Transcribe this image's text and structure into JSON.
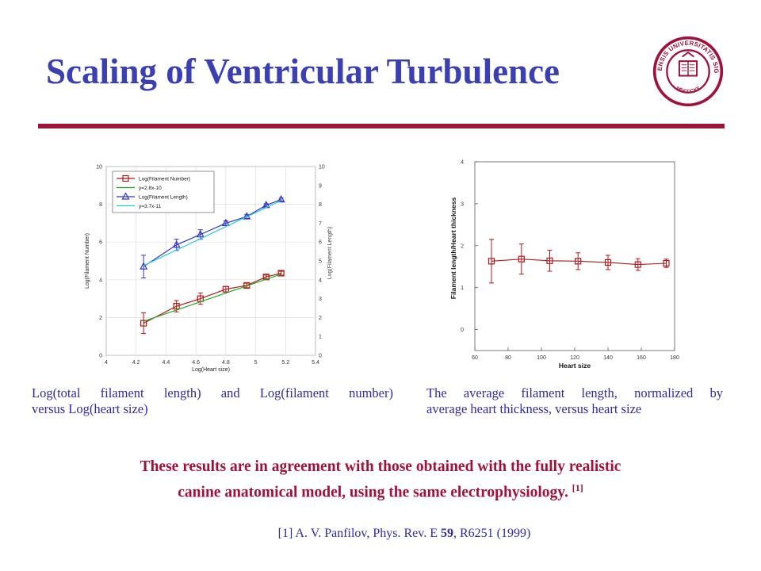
{
  "slide": {
    "title": "Scaling of Ventricular Turbulence",
    "caption_left_line1": "Log(total filament length) and Log(filament number)",
    "caption_left_line2": "versus Log(heart size)",
    "caption_right_line1": "The average filament length, normalized by",
    "caption_right_line2": "average heart thickness, versus heart size",
    "main_line1": "These results are in agreement with those obtained with the fully realistic",
    "main_line2": "canine anatomical model, using the same electrophysiology.",
    "main_ref_marker": "[1]",
    "reference_prefix": "[1] A. V. Panfilov, Phys. Rev. E ",
    "reference_volume": "59",
    "reference_suffix": ", R6251 (1999)",
    "seal_text_top": "INDIANENSIS UNIVERSITATIS SIGILLUM",
    "seal_text_bottom": "MDCCCXX",
    "colors": {
      "title": "#3a3fb4",
      "accent": "#a0123a",
      "caption": "#2e2aa5"
    }
  },
  "chart_data": [
    {
      "type": "line",
      "title": "",
      "xlabel": "Log(Heart size)",
      "ylabel": "Log(Filament Number)",
      "y2label": "Log(Filament Length)",
      "xlim": [
        4,
        5.4
      ],
      "ylim": [
        0,
        10
      ],
      "y2lim": [
        0,
        10
      ],
      "x_ticks": [
        "4",
        "4.2",
        "4.4",
        "4.6",
        "4.8",
        "5",
        "5.2",
        "5.4"
      ],
      "y_ticks": [
        "0",
        "2",
        "4",
        "6",
        "8",
        "10"
      ],
      "y2_ticks": [
        "0",
        "1",
        "2",
        "3",
        "4",
        "5",
        "6",
        "7",
        "8",
        "9",
        "10"
      ],
      "grid": true,
      "legend": "top-left",
      "legend_entries": [
        "Log(Filament Number)",
        "y=2.8x-10",
        "Log(Filament Length)",
        "y=3.7x-11"
      ],
      "series": [
        {
          "name": "Log(Filament Number)",
          "axis": "left",
          "color": "#b01818",
          "marker": "square",
          "x": [
            4.25,
            4.47,
            4.63,
            4.8,
            4.94,
            5.07,
            5.17
          ],
          "y": [
            1.7,
            2.6,
            3.0,
            3.5,
            3.7,
            4.15,
            4.35
          ],
          "err": [
            0.55,
            0.3,
            0.3,
            0.15,
            0.12,
            0.1,
            0.1
          ]
        },
        {
          "name": "y=2.8x-10",
          "axis": "left",
          "color": "#22aa22",
          "marker": "none",
          "x": [
            4.25,
            5.17
          ],
          "y": [
            1.8,
            4.3
          ]
        },
        {
          "name": "Log(Filament Length)",
          "axis": "left",
          "color": "#3434c8",
          "marker": "triangle",
          "x": [
            4.25,
            4.47,
            4.63,
            4.8,
            4.94,
            5.07,
            5.17
          ],
          "y": [
            4.7,
            5.85,
            6.4,
            7.0,
            7.35,
            7.95,
            8.25
          ],
          "err": [
            0.6,
            0.3,
            0.25,
            0.12,
            0.1,
            0.08,
            0.08
          ]
        },
        {
          "name": "y=3.7x-11",
          "axis": "left",
          "color": "#22ccdd",
          "marker": "none",
          "x": [
            4.25,
            5.17
          ],
          "y": [
            4.75,
            8.2
          ]
        }
      ]
    },
    {
      "type": "line",
      "title": "",
      "xlabel": "Heart size",
      "ylabel": "Filament length/Heart thickness",
      "xlim": [
        60,
        180
      ],
      "ylim": [
        -0.5,
        4
      ],
      "x_ticks": [
        "60",
        "80",
        "100",
        "120",
        "140",
        "160",
        "180"
      ],
      "y_ticks": [
        "0",
        "1",
        "2",
        "3",
        "4"
      ],
      "grid": false,
      "series": [
        {
          "name": "",
          "color": "#b01818",
          "marker": "square",
          "x": [
            70,
            88,
            105,
            122,
            140,
            158,
            175
          ],
          "y": [
            1.63,
            1.68,
            1.64,
            1.63,
            1.6,
            1.55,
            1.58
          ],
          "err": [
            0.52,
            0.36,
            0.25,
            0.2,
            0.17,
            0.14,
            0.1
          ]
        }
      ]
    }
  ]
}
